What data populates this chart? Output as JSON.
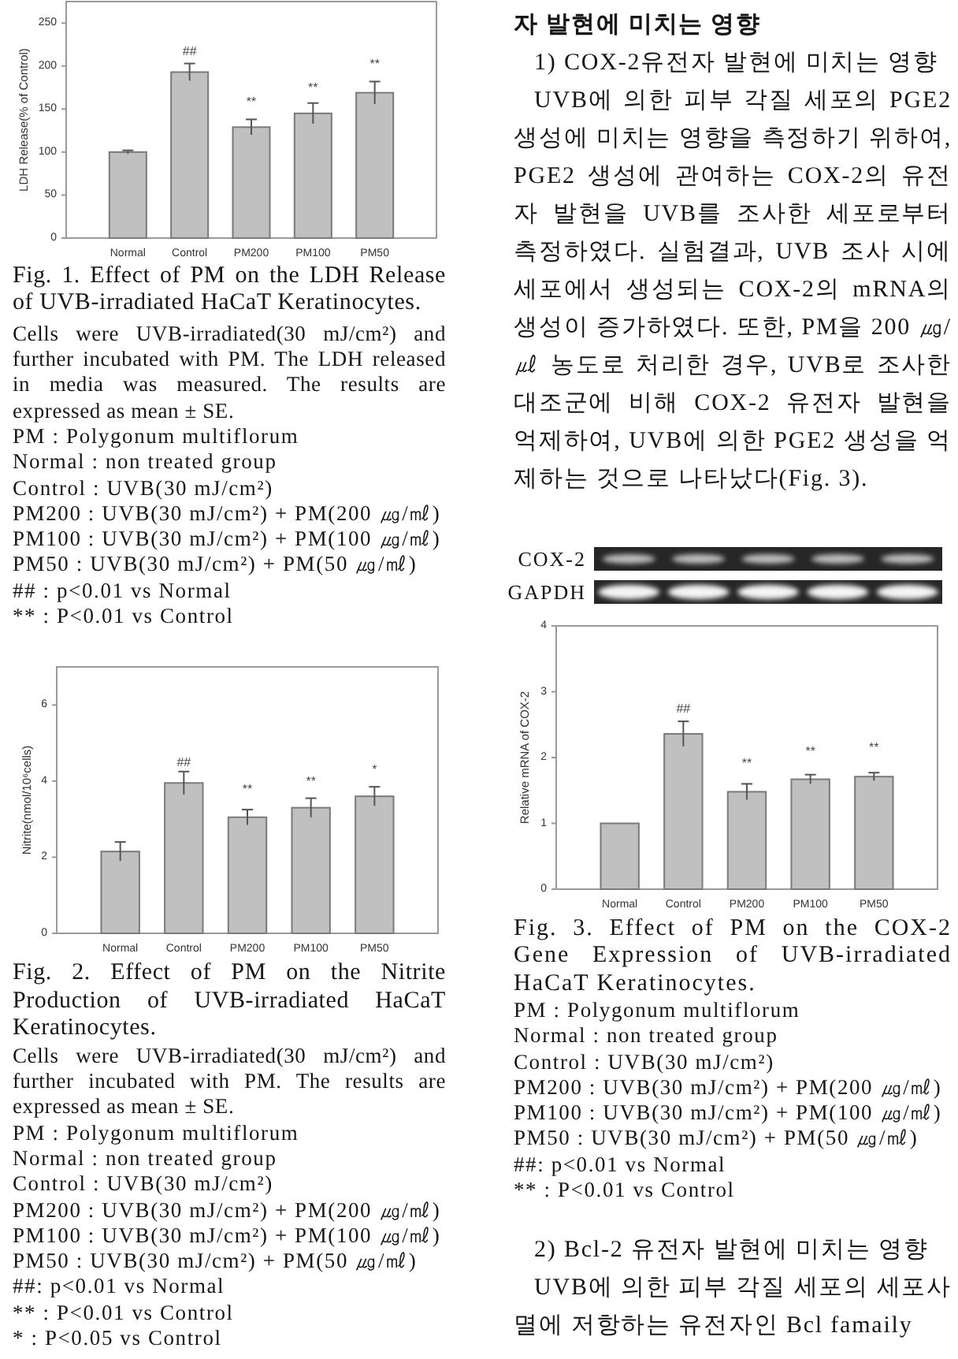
{
  "chart_data": [
    {
      "type": "bar",
      "title": "Fig. 1. Effect of PM on the LDH Release of UVB-irradiated HaCaT Keratinocytes.",
      "ylabel": "LDH Release(% of Control)",
      "categories": [
        "Normal",
        "Control",
        "PM200",
        "PM100",
        "PM50"
      ],
      "values": [
        100,
        193,
        129,
        145,
        169
      ],
      "errors": [
        2,
        10,
        9,
        12,
        13
      ],
      "color": "#c0c0c0",
      "ylim": [
        0,
        275
      ],
      "yticks": [
        0,
        50,
        100,
        150,
        200,
        250
      ],
      "annotations": [
        "##",
        "**",
        "**",
        "**",
        "Cells were UVB-irradiated(30 mJ/cm²) and further incubated with PM. The LDH released in media was measured. The results are expressed as mean ± SE.",
        "PM : Polygonum multiflorum",
        "Normal : non treated group",
        "Control : UVB(30 mJ/cm²)",
        "PM200 : UVB(30 mJ/cm²) + PM(200 ㎍/㎖)",
        "PM100 : UVB(30 mJ/cm²) + PM(100 ㎍/㎖)",
        "PM50 : UVB(30 mJ/cm²) + PM(50 ㎍/㎖)",
        "## : p<0.01 vs Normal",
        "** : P<0.01 vs Control"
      ]
    },
    {
      "type": "bar",
      "title": "Fig. 2. Effect of PM on the Nitrite Production of UVB-irradiated HaCaT Keratinocytes.",
      "ylabel": "Nitrite(nmol/10⁶cells)",
      "categories": [
        "Normal",
        "Control",
        "PM200",
        "PM100",
        "PM50"
      ],
      "values": [
        2.15,
        3.95,
        3.05,
        3.3,
        3.6
      ],
      "errors": [
        0.25,
        0.3,
        0.2,
        0.25,
        0.25
      ],
      "color": "#c0c0c0",
      "ylim": [
        0,
        7
      ],
      "yticks": [
        0,
        2,
        4,
        6
      ],
      "annotations": [
        "##",
        "**",
        "**",
        "*",
        "Cells were UVB-irradiated(30 mJ/cm²) and further incubated with PM. The results are expressed as mean ± SE.",
        "PM : Polygonum multiflorum",
        "Normal : non treated group",
        "Control : UVB(30 mJ/cm²)",
        "PM200 : UVB(30 mJ/cm²) + PM(200 ㎍/㎖)",
        "PM100 : UVB(30 mJ/cm²) + PM(100 ㎍/㎖)",
        "PM50 : UVB(30 mJ/cm²) + PM(50 ㎍/㎖)",
        "##: p<0.01 vs Normal",
        "** : P<0.01 vs Control",
        "* : P<0.05 vs Control"
      ]
    },
    {
      "type": "bar",
      "title": "Fig. 3. Effect of PM on the COX-2 Gene Expression of UVB-irradiated HaCaT Keratinocytes.",
      "ylabel": "Relative mRNA of COX-2",
      "categories": [
        "Normal",
        "Control",
        "PM200",
        "PM100",
        "PM50"
      ],
      "values": [
        1,
        2.36,
        1.48,
        1.67,
        1.71
      ],
      "errors": [
        null,
        0.19,
        0.12,
        0.07,
        0.06
      ],
      "color": "#c0c0c0",
      "ylim": [
        0,
        4
      ],
      "yticks": [
        0,
        1,
        2,
        3,
        4
      ],
      "annotations": [
        "##",
        "**",
        "**",
        "**",
        "자 발현에 미치는 영향",
        "1) COX-2유전자 발현에 미치는 영향",
        "UVB에 의한 피부 각질 세포의 PGE2 생성에 미치는 영향을 측정하기 위하여, PGE2 생성에 관여하는 COX-2의 유전자 발현을 UVB를 조사한 세포로부터 측정하였다. 실험결과, UVB 조사 시에 세포에서 생성되는 COX-2의 mRNA의 생성이 증가하였다. 또한, PM을 200 ㎍/㎕ 농도로 처리한 경우, UVB로 조사한 대조군에 비해 COX-2 유전자 발현을 억제하여, UVB에 의한 PGE2 생성을 억제하는 것으로 나타났다(Fig. 3).",
        "COX-2",
        "GAPDH",
        "PM : Polygonum multiflorum",
        "Normal : non treated group",
        "Control : UVB(30 mJ/cm²)",
        "PM200 : UVB(30 mJ/cm²) + PM(200 ㎍/㎖)",
        "PM100 : UVB(30 mJ/cm²) + PM(100 ㎍/㎖)",
        "PM50 : UVB(30 mJ/cm²) + PM(50 ㎍/㎖)",
        "##: p<0.01 vs Normal",
        "** : P<0.01 vs Control",
        "2) Bcl-2 유전자 발현에 미치는 영향",
        "UVB에 의한 피부 각질 세포의 세포사멸에 저항하는 유전자인 Bcl famaily"
      ]
    }
  ]
}
